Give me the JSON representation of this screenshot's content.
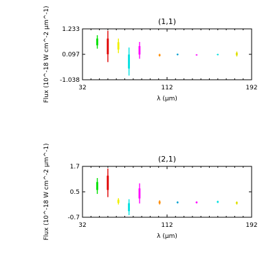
{
  "chart_data": [
    {
      "type": "scatter",
      "title": "(1,1)",
      "xlabel": "λ (μm)",
      "ylabel": "Flux (10^-18 W cm^-2 μm^-1)",
      "xlim": [
        32,
        192
      ],
      "ylim": [
        -1.038,
        1.233
      ],
      "x_ticks": [
        32,
        112,
        192
      ],
      "x_tick_labels": [
        "32",
        "112",
        "192"
      ],
      "y_ticks": [
        1.233,
        0.097,
        -1.038
      ],
      "y_tick_labels": [
        "1.233",
        "0.097",
        "-1.038"
      ],
      "series": [
        {
          "color": "#00e000",
          "x": 46,
          "ymin": 0.35,
          "ymax": 0.95
        },
        {
          "color": "#e00000",
          "x": 56,
          "ymin": -0.25,
          "ymax": 1.15
        },
        {
          "color": "#f0f000",
          "x": 66,
          "ymin": 0.15,
          "ymax": 0.8
        },
        {
          "color": "#00e0e0",
          "x": 76,
          "ymin": -0.85,
          "ymax": 0.4
        },
        {
          "color": "#ff00ff",
          "x": 86,
          "ymin": -0.1,
          "ymax": 0.65
        },
        {
          "color": "#ff8c00",
          "x": 105,
          "ymin": 0.0,
          "ymax": 0.12
        },
        {
          "color": "#00a0d0",
          "x": 122,
          "ymin": 0.05,
          "ymax": 0.13
        },
        {
          "color": "#ff00ff",
          "x": 140,
          "ymin": 0.04,
          "ymax": 0.1
        },
        {
          "color": "#00e0e0",
          "x": 160,
          "ymin": 0.05,
          "ymax": 0.12
        },
        {
          "color": "#e0e000",
          "x": 178,
          "ymin": 0.0,
          "ymax": 0.22
        }
      ]
    },
    {
      "type": "scatter",
      "title": "(2,1)",
      "xlabel": "λ (μm)",
      "ylabel": "Flux (10^-18 W cm^-2 μm^-1)",
      "xlim": [
        32,
        192
      ],
      "ylim": [
        -0.7,
        1.7
      ],
      "x_ticks": [
        32,
        112,
        192
      ],
      "x_tick_labels": [
        "32",
        "112",
        "192"
      ],
      "y_ticks": [
        1.7,
        0.5,
        -0.7
      ],
      "y_tick_labels": [
        "1.7",
        "0.5",
        "-0.7"
      ],
      "series": [
        {
          "color": "#00e000",
          "x": 46,
          "ymin": 0.4,
          "ymax": 1.15
        },
        {
          "color": "#e00000",
          "x": 56,
          "ymin": 0.25,
          "ymax": 1.6
        },
        {
          "color": "#f0f000",
          "x": 66,
          "ymin": -0.1,
          "ymax": 0.2
        },
        {
          "color": "#00e0e0",
          "x": 76,
          "ymin": -0.6,
          "ymax": 0.15
        },
        {
          "color": "#ff00ff",
          "x": 86,
          "ymin": -0.05,
          "ymax": 0.9
        },
        {
          "color": "#ff8c00",
          "x": 105,
          "ymin": -0.1,
          "ymax": 0.1
        },
        {
          "color": "#00a0d0",
          "x": 122,
          "ymin": -0.05,
          "ymax": 0.05
        },
        {
          "color": "#ff00ff",
          "x": 140,
          "ymin": -0.05,
          "ymax": 0.05
        },
        {
          "color": "#00e0e0",
          "x": 160,
          "ymin": -0.03,
          "ymax": 0.08
        },
        {
          "color": "#e0e000",
          "x": 178,
          "ymin": -0.1,
          "ymax": 0.05
        }
      ]
    }
  ]
}
